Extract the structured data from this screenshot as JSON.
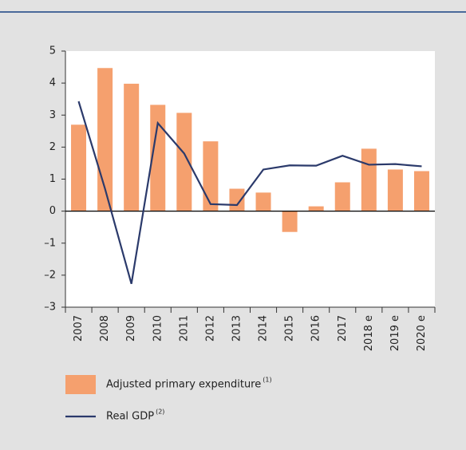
{
  "chart_data": {
    "type": "combo",
    "categories": [
      "2007",
      "2008",
      "2009",
      "2010",
      "2011",
      "2012",
      "2013",
      "2014",
      "2015",
      "2016",
      "2017",
      "2018 e",
      "2019 e",
      "2020 e"
    ],
    "series": [
      {
        "name": "Adjusted primary expenditure",
        "name_note": "(1)",
        "type": "bar",
        "color": "#f5a06e",
        "values": [
          2.7,
          4.47,
          3.98,
          3.32,
          3.07,
          2.18,
          0.7,
          0.58,
          -0.65,
          0.15,
          0.9,
          1.95,
          1.3,
          1.25
        ]
      },
      {
        "name": "Real GDP",
        "name_note": "(2)",
        "type": "line",
        "color": "#2b3a6b",
        "values": [
          3.43,
          0.7,
          -2.27,
          2.75,
          1.8,
          0.22,
          0.19,
          1.3,
          1.43,
          1.42,
          1.73,
          1.45,
          1.47,
          1.4
        ]
      }
    ],
    "ylim": [
      -3,
      5
    ],
    "yticks": [
      {
        "value": -3,
        "label": "–3"
      },
      {
        "value": -2,
        "label": "–2"
      },
      {
        "value": -1,
        "label": "–1"
      },
      0,
      1,
      2,
      3,
      4,
      5
    ]
  }
}
